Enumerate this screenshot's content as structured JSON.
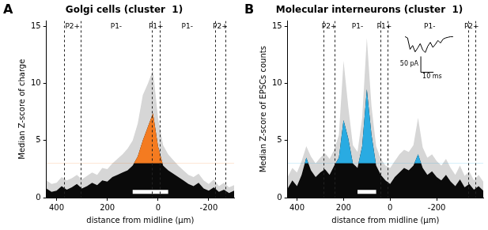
{
  "chart_data": [
    {
      "type": "line",
      "panel": "A",
      "title": "Golgi cells (cluster  1)",
      "x_label": "distance from midline (µm)",
      "y_label": "Median Z-score of charge",
      "xlim": [
        440,
        -300
      ],
      "ylim": [
        0,
        15.5
      ],
      "xticks": [
        400,
        200,
        0,
        -200
      ],
      "yticks": [
        0,
        5,
        10,
        15
      ],
      "grid": false,
      "color": "#f47b20",
      "threshold": 3,
      "x": [
        440,
        420,
        400,
        380,
        360,
        340,
        320,
        300,
        280,
        260,
        240,
        220,
        200,
        180,
        160,
        140,
        120,
        100,
        80,
        60,
        40,
        20,
        0,
        -20,
        -40,
        -60,
        -80,
        -100,
        -120,
        -140,
        -160,
        -180,
        -200,
        -220,
        -240,
        -260,
        -280,
        -300
      ],
      "values": [
        0.8,
        0.5,
        0.6,
        1.0,
        0.7,
        0.9,
        1.2,
        0.8,
        1.0,
        1.3,
        1.1,
        1.5,
        1.4,
        1.8,
        2.0,
        2.2,
        2.4,
        2.8,
        3.6,
        5.0,
        6.2,
        7.4,
        4.5,
        2.8,
        2.4,
        2.1,
        1.8,
        1.5,
        1.2,
        1.0,
        1.3,
        0.8,
        0.6,
        0.9,
        0.5,
        0.7,
        0.4,
        0.6
      ],
      "envelope": [
        1.5,
        1.2,
        1.3,
        1.8,
        1.5,
        1.7,
        2.0,
        1.6,
        1.9,
        2.2,
        2.0,
        2.6,
        2.5,
        3.0,
        3.4,
        3.8,
        4.3,
        5.0,
        6.5,
        9.0,
        10.0,
        11.2,
        7.0,
        4.6,
        3.8,
        3.3,
        2.8,
        2.4,
        2.0,
        1.8,
        2.1,
        1.5,
        1.2,
        1.6,
        1.0,
        1.3,
        0.9,
        1.1
      ],
      "boundaries": [
        370,
        305,
        25,
        -8,
        -225,
        -265
      ],
      "zones": [
        {
          "label": "P2+",
          "x": 337
        },
        {
          "label": "P1-",
          "x": 165
        },
        {
          "label": "P1+",
          "x": 8
        },
        {
          "label": "P1-",
          "x": -115
        },
        {
          "label": "P2+",
          "x": -245
        }
      ],
      "bar": {
        "x": [
          100,
          -40
        ],
        "y": 0.5
      }
    },
    {
      "type": "line",
      "panel": "B",
      "title": "Molecular interneurons (cluster  1)",
      "x_label": "distance from midline (µm)",
      "y_label": "Median Z-score of EPSCs counts",
      "xlim": [
        440,
        -400
      ],
      "ylim": [
        0,
        15.5
      ],
      "xticks": [
        400,
        200,
        0,
        -200
      ],
      "yticks": [
        0,
        5,
        10,
        15
      ],
      "grid": false,
      "color": "#29abe2",
      "threshold": 3,
      "x": [
        440,
        420,
        400,
        380,
        360,
        340,
        320,
        300,
        280,
        260,
        240,
        220,
        200,
        180,
        160,
        140,
        120,
        100,
        80,
        60,
        40,
        20,
        0,
        -20,
        -40,
        -60,
        -80,
        -100,
        -120,
        -140,
        -160,
        -180,
        -200,
        -220,
        -240,
        -260,
        -280,
        -300,
        -320,
        -340,
        -360,
        -380,
        -400
      ],
      "values": [
        0.8,
        1.5,
        1.0,
        2.0,
        3.5,
        2.4,
        1.8,
        2.2,
        2.5,
        2.0,
        2.8,
        3.5,
        6.8,
        5.2,
        3.0,
        2.6,
        4.5,
        9.5,
        5.5,
        2.8,
        2.0,
        1.5,
        1.2,
        1.8,
        2.2,
        2.6,
        2.4,
        2.8,
        3.8,
        2.6,
        2.0,
        2.3,
        1.8,
        1.5,
        2.0,
        1.4,
        1.0,
        1.6,
        0.9,
        1.2,
        0.7,
        1.0,
        0.6
      ],
      "envelope": [
        1.8,
        2.6,
        2.2,
        3.2,
        4.5,
        3.6,
        3.0,
        3.5,
        3.9,
        3.4,
        4.2,
        5.5,
        12.0,
        8.0,
        4.6,
        4.0,
        7.0,
        14.0,
        8.0,
        4.5,
        3.4,
        2.8,
        2.6,
        3.2,
        3.8,
        4.2,
        4.0,
        4.6,
        7.0,
        4.4,
        3.5,
        3.8,
        3.2,
        2.8,
        3.4,
        2.6,
        2.0,
        2.8,
        1.9,
        2.3,
        1.5,
        2.0,
        1.4
      ],
      "boundaries": [
        285,
        240,
        40,
        10,
        -335,
        -365
      ],
      "zones": [
        {
          "label": "P2+",
          "x": 262
        },
        {
          "label": "P1-",
          "x": 140
        },
        {
          "label": "P1+",
          "x": 25
        },
        {
          "label": "P1-",
          "x": -170
        },
        {
          "label": "P2+",
          "x": -350
        }
      ],
      "bar": {
        "x": [
          140,
          60
        ],
        "y": 0.5
      },
      "inset": {
        "trace": [
          0,
          -4,
          -40,
          -28,
          -48,
          -36,
          -22,
          -42,
          -50,
          -30,
          -18,
          -34,
          -24,
          -12,
          -20,
          -8,
          -4,
          -2,
          0,
          0
        ],
        "dt": 2,
        "scale_y": {
          "value": 50,
          "label": "50 pA"
        },
        "scale_x": {
          "value": 10,
          "label": "10 ms"
        }
      }
    }
  ]
}
